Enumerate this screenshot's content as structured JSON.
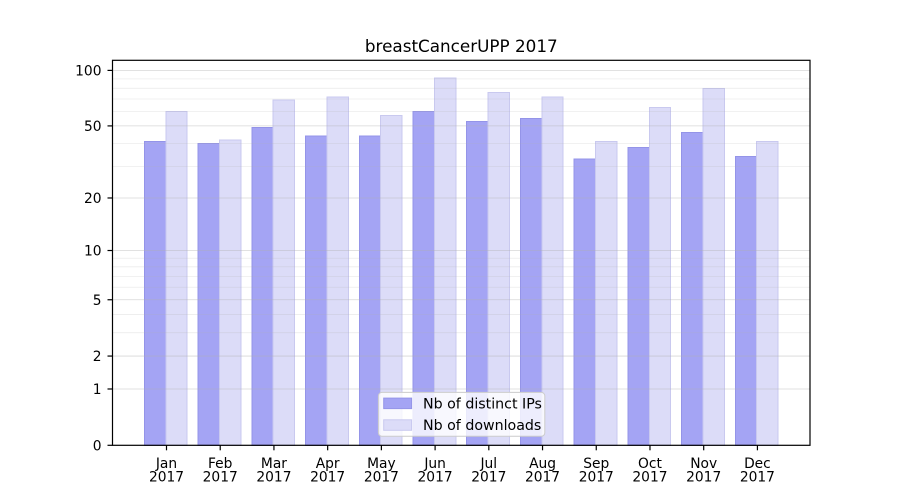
{
  "title": "breastCancerUPP 2017",
  "chart_data": {
    "type": "bar",
    "title": "breastCancerUPP 2017",
    "categories": [
      "Jan",
      "Feb",
      "Mar",
      "Apr",
      "May",
      "Jun",
      "Jul",
      "Aug",
      "Sep",
      "Oct",
      "Nov",
      "Dec"
    ],
    "category_year": "2017",
    "series": [
      {
        "name": "Nb of distinct IPs",
        "color": "#a4a4f4",
        "edge_color": "#9494e8",
        "values": [
          41,
          40,
          49,
          44,
          44,
          60,
          53,
          55,
          33,
          38,
          46,
          34
        ]
      },
      {
        "name": "Nb of downloads",
        "color": "#dcdcf8",
        "edge_color": "#c9c9ef",
        "values": [
          60,
          42,
          69,
          72,
          57,
          91,
          76,
          72,
          41,
          63,
          80,
          41
        ]
      }
    ],
    "xlabel": "",
    "ylabel": "",
    "yscale": "log1p",
    "ylim": [
      0,
      113
    ],
    "yticks": [
      0,
      1,
      2,
      5,
      10,
      20,
      50,
      100
    ],
    "yminorticks": [
      3,
      4,
      6,
      7,
      8,
      9,
      30,
      40,
      60,
      70,
      80,
      90
    ],
    "grid": true,
    "legend_position": "lower center",
    "legend_labels": [
      "Nb of distinct IPs",
      "Nb of downloads"
    ],
    "colors": {
      "distinct_ips_bar": "#a4a4f4",
      "downloads_bar": "#dcdcf8",
      "grid_major": "rgba(176,176,176,0.5)",
      "grid_minor": "rgba(176,176,176,0.24)",
      "axis": "#000000",
      "text": "#000000",
      "legend_border": "#cccccc",
      "legend_background": "rgba(255,255,255,0.8)"
    }
  }
}
